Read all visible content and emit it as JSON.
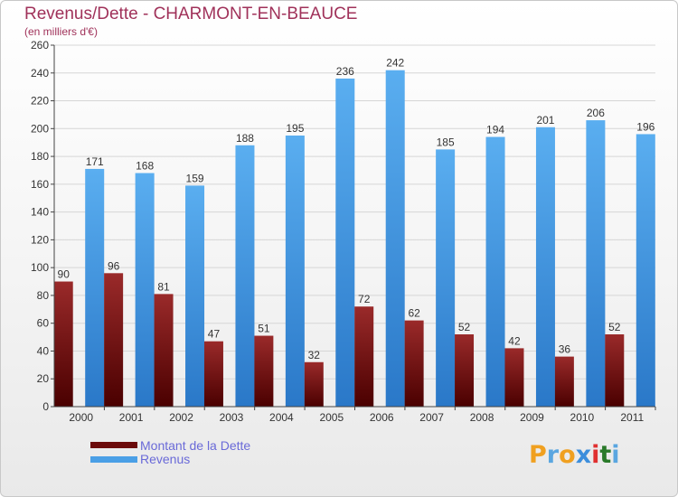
{
  "header": {
    "title": "Revenus/Dette - CHARMONT-EN-BEAUCE",
    "subtitle": "(en milliers d'€)"
  },
  "brand": {
    "letters": [
      "P",
      "r",
      "o",
      "x",
      "i",
      "t",
      "i"
    ],
    "colors": [
      "#f0a020",
      "#5aa6e0",
      "#f0a020",
      "#3c8edc",
      "#e03030",
      "#2a7a2a",
      "#5aa6e0"
    ]
  },
  "colors": {
    "dette_top": "#9a2a2a",
    "dette_bottom": "#4a0000",
    "revenus_top": "#5aaef0",
    "revenus_bottom": "#2a78c8",
    "grid": "#d6d6d6",
    "axis": "#444444"
  },
  "legend": {
    "position": "bottom-left",
    "items": [
      {
        "label": "Montant de la Dette",
        "color": "#6b0a0a"
      },
      {
        "label": "Revenus",
        "color": "#4a9fe6"
      }
    ]
  },
  "chart_data": {
    "type": "bar",
    "title": "Revenus/Dette - CHARMONT-EN-BEAUCE",
    "subtitle": "(en milliers d'€)",
    "categories": [
      "2000",
      "2001",
      "2002",
      "2003",
      "2004",
      "2005",
      "2006",
      "2007",
      "2008",
      "2009",
      "2010",
      "2011"
    ],
    "series": [
      {
        "name": "Montant de la Dette",
        "values": [
          90,
          96,
          81,
          47,
          51,
          32,
          72,
          62,
          52,
          42,
          36,
          52
        ]
      },
      {
        "name": "Revenus",
        "values": [
          171,
          168,
          159,
          188,
          195,
          236,
          242,
          185,
          194,
          201,
          206,
          196
        ]
      }
    ],
    "ylim": [
      0,
      260
    ],
    "yticks": [
      0,
      20,
      40,
      60,
      80,
      100,
      120,
      140,
      160,
      180,
      200,
      220,
      240,
      260
    ],
    "grid": true
  }
}
